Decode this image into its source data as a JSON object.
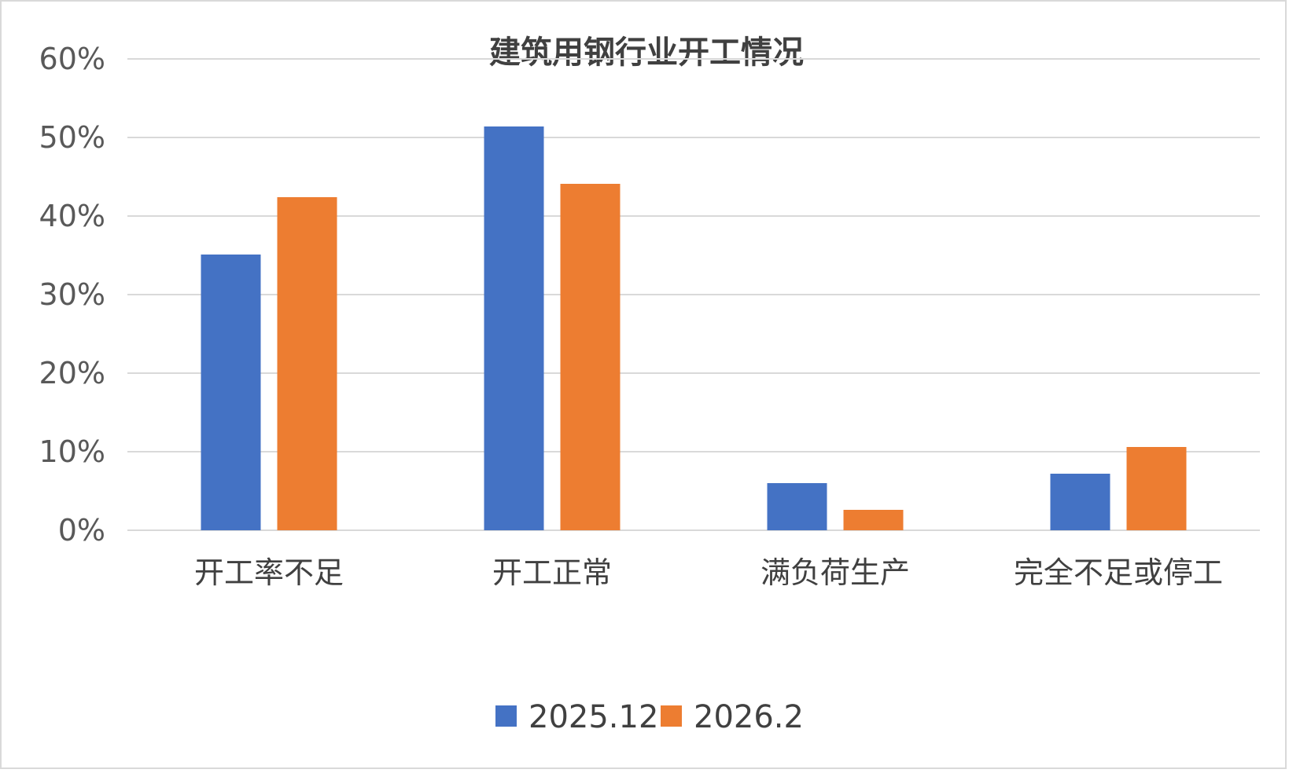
{
  "chart_data": {
    "type": "bar",
    "title": "建筑用钢行业开工情况",
    "categories": [
      "开工率不足",
      "开工正常",
      "满负荷生产",
      "完全不足或停工"
    ],
    "series": [
      {
        "name": "2025.12",
        "color": "#4472C4",
        "values": [
          35.1,
          51.4,
          6.0,
          7.2
        ]
      },
      {
        "name": "2026.2",
        "color": "#ED7D31",
        "values": [
          42.4,
          44.1,
          2.6,
          10.6
        ]
      }
    ],
    "xlabel": "",
    "ylabel": "",
    "ylim": [
      0,
      60
    ],
    "yticks": [
      0,
      10,
      20,
      30,
      40,
      50,
      60
    ],
    "ytick_labels": [
      "0%",
      "10%",
      "20%",
      "30%",
      "40%",
      "50%",
      "60%"
    ],
    "grid": true,
    "legend_position": "bottom"
  }
}
